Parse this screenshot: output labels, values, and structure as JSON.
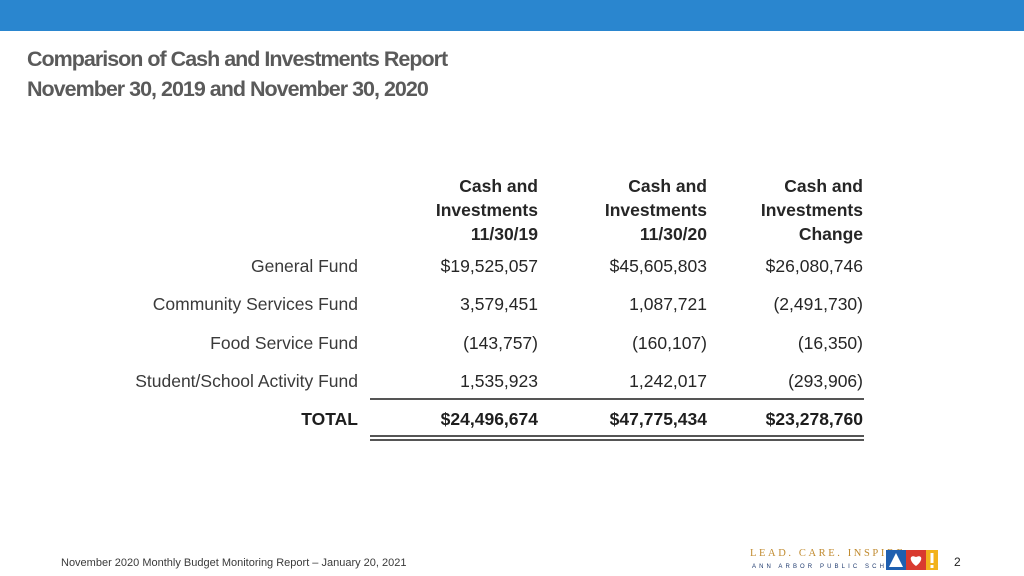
{
  "header": {
    "title_line1": "Comparison of Cash and Investments Report",
    "title_line2": "November 30, 2019 and November 30, 2020"
  },
  "table": {
    "columns": [
      {
        "line1": "Cash and",
        "line2": "Investments",
        "line3": "11/30/19"
      },
      {
        "line1": "Cash and",
        "line2": "Investments",
        "line3": "11/30/20"
      },
      {
        "line1": "Cash and",
        "line2": "Investments",
        "line3": "Change"
      }
    ],
    "rows": [
      {
        "label": "General Fund",
        "values": [
          "$19,525,057",
          "$45,605,803",
          "$26,080,746"
        ]
      },
      {
        "label": "Community Services Fund",
        "values": [
          "3,579,451",
          "1,087,721",
          "(2,491,730)"
        ]
      },
      {
        "label": "Food Service Fund",
        "values": [
          "(143,757)",
          "(160,107)",
          "(16,350)"
        ]
      },
      {
        "label": "Student/School Activity Fund",
        "values": [
          "1,535,923",
          "1,242,017",
          "(293,906)"
        ]
      }
    ],
    "total": {
      "label": "TOTAL",
      "values": [
        "$24,496,674",
        "$47,775,434",
        "$23,278,760"
      ]
    }
  },
  "footer": {
    "text": "November 2020 Monthly Budget Monitoring Report – January 20, 2021",
    "page_number": "2"
  },
  "logo": {
    "tagline": "LEAD. CARE. INSPIRE.",
    "org_name": "ANN ARBOR PUBLIC SCHOOLS"
  },
  "colors": {
    "accent_bar": "#2a86cf",
    "title_text": "#5a5a5a"
  }
}
